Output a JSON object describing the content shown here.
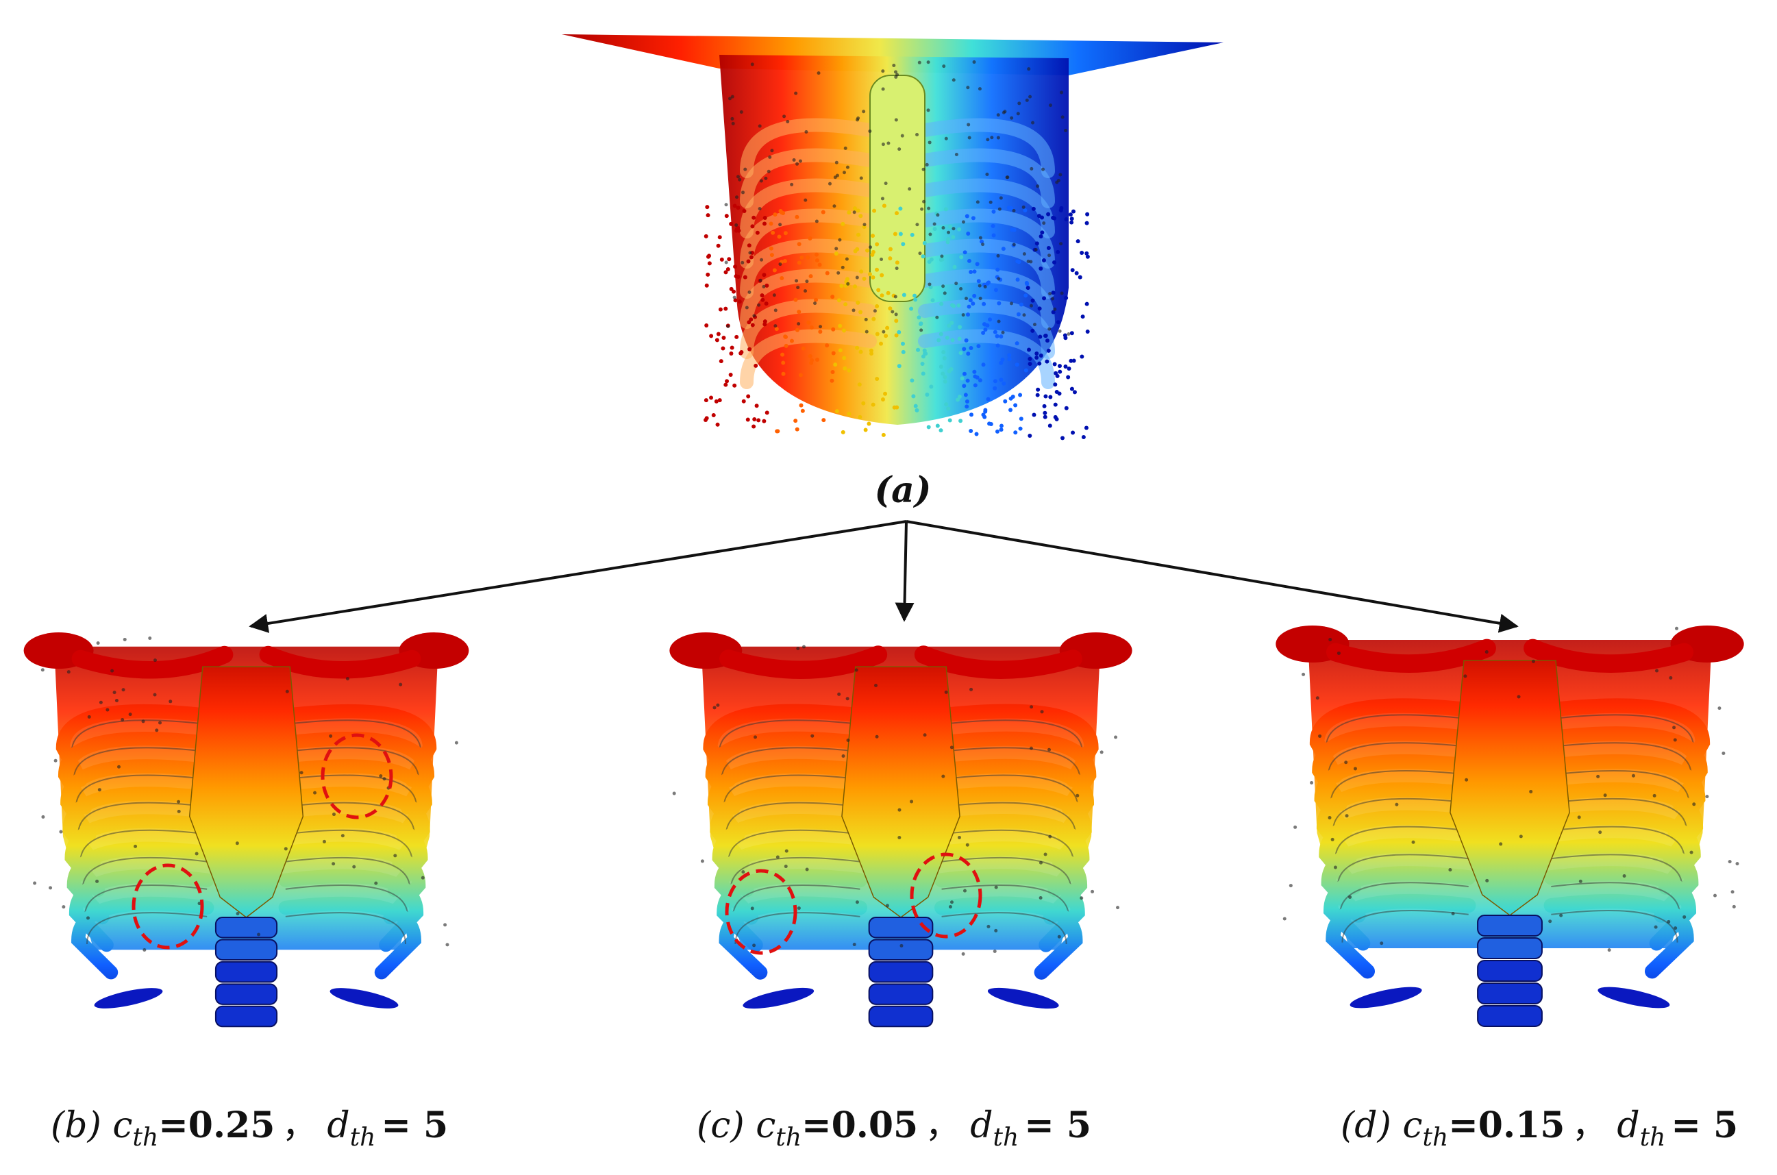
{
  "figure": {
    "panel_a": {
      "label": "(a)"
    },
    "panels": [
      {
        "label": "(b)",
        "c_symbol": "c",
        "c_sub": "th",
        "c_value": "=0.25",
        "separator": "，",
        "d_symbol": "d",
        "d_sub": "th",
        "d_value": "= 5"
      },
      {
        "label": "(c)",
        "c_symbol": "c",
        "c_sub": "th",
        "c_value": "=0.05",
        "separator": "，",
        "d_symbol": "d",
        "d_sub": "th",
        "d_value": "= 5"
      },
      {
        "label": "(d)",
        "c_symbol": "c",
        "c_sub": "th",
        "c_value": "=0.15",
        "separator": "，",
        "d_symbol": "d",
        "d_sub": "th",
        "d_value": "= 5"
      }
    ]
  }
}
